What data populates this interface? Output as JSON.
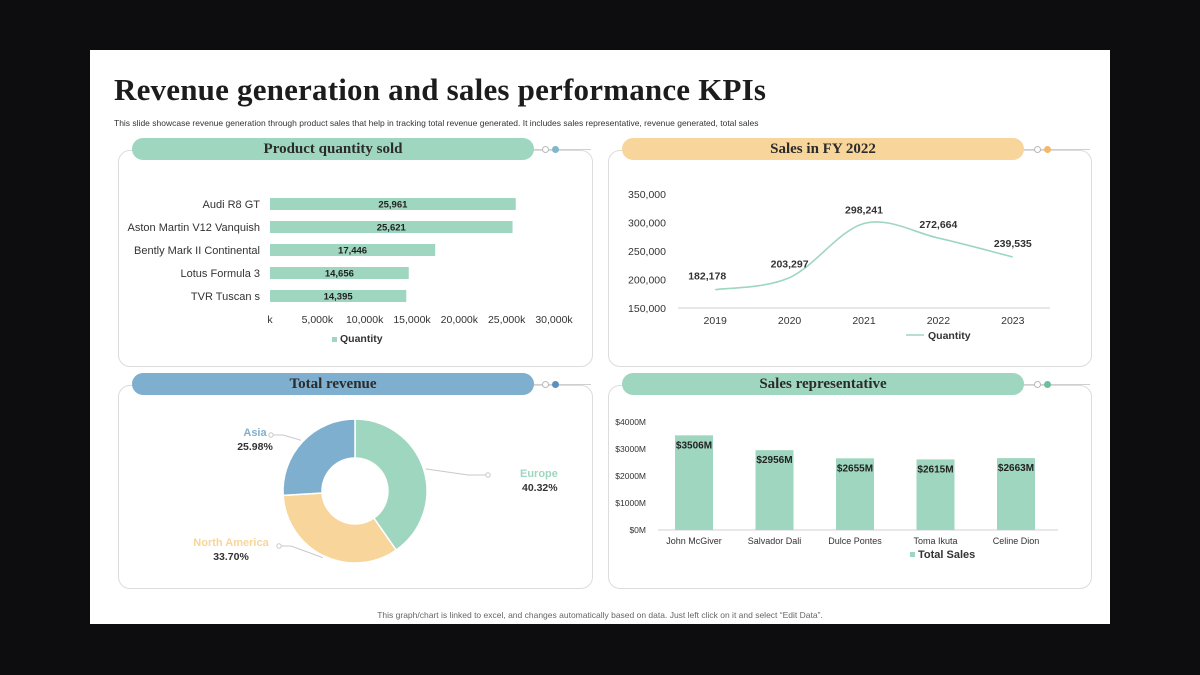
{
  "slide": {
    "title": "Revenue generation and sales performance KPIs",
    "subtitle": "This slide showcase revenue generation through product sales that help in tracking total revenue generated. It includes sales representative, revenue generated, total sales",
    "footer": "This graph/chart is linked to excel,  and changes automatically based on data. Just left click on it and select “Edit Data”."
  },
  "panels": {
    "product_quantity": {
      "header": "Product quantity sold"
    },
    "sales_fy": {
      "header": "Sales in FY 2022"
    },
    "total_revenue": {
      "header": "Total revenue"
    },
    "sales_rep": {
      "header": "Sales representative"
    }
  },
  "colors": {
    "green": "#9fd6bf",
    "yellow": "#f8d59a",
    "blue": "#7fafcf",
    "bar_green": "#9fd6bf",
    "pie_green": "#9fd6bf",
    "pie_yellow": "#f8d59a",
    "pie_blue": "#7fafcf",
    "line": "#9fd6bf"
  },
  "chart_data": [
    {
      "id": "product_quantity",
      "type": "bar",
      "orientation": "horizontal",
      "categories": [
        "Audi R8 GT",
        "Aston Martin V12 Vanquish",
        "Bently Mark II Continental",
        "Lotus Formula 3",
        "TVR Tuscan s"
      ],
      "values": [
        25961,
        25621,
        17446,
        14656,
        14395
      ],
      "value_labels": [
        "25,961",
        "25,621",
        "17,446",
        "14,656",
        "14,395"
      ],
      "xlim": [
        0,
        30000
      ],
      "x_ticks": [
        0,
        5000,
        10000,
        15000,
        20000,
        25000,
        30000
      ],
      "x_tick_labels": [
        "k",
        "5,000k",
        "10,000k",
        "15,000k",
        "20,000k",
        "25,000k",
        "30,000k"
      ],
      "legend": "Quantity",
      "legend_position": "bottom"
    },
    {
      "id": "sales_fy",
      "type": "line",
      "x": [
        "2019",
        "2020",
        "2021",
        "2022",
        "2023"
      ],
      "values": [
        182178,
        203297,
        298241,
        272664,
        239535
      ],
      "value_labels": [
        "182,178",
        "203,297",
        "298,241",
        "272,664",
        "239,535"
      ],
      "ylim": [
        150000,
        350000
      ],
      "y_ticks": [
        150000,
        200000,
        250000,
        300000,
        350000
      ],
      "y_tick_labels": [
        "150,000",
        "200,000",
        "250,000",
        "300,000",
        "350,000"
      ],
      "legend": "Quantity",
      "legend_position": "bottom"
    },
    {
      "id": "total_revenue",
      "type": "pie",
      "donut": true,
      "slices": [
        {
          "label": "Europe",
          "value": 40.32,
          "value_label": "40.32%",
          "color": "#9fd6bf"
        },
        {
          "label": "North America",
          "value": 33.7,
          "value_label": "33.70%",
          "color": "#f8d59a"
        },
        {
          "label": "Asia",
          "value": 25.98,
          "value_label": "25.98%",
          "color": "#7fafcf"
        }
      ]
    },
    {
      "id": "sales_rep",
      "type": "bar",
      "categories": [
        "John McGiver",
        "Salvador Dali",
        "Dulce Pontes",
        "Toma Ikuta",
        "Celine Dion"
      ],
      "values": [
        3506,
        2956,
        2655,
        2615,
        2663
      ],
      "value_labels": [
        "$3506M",
        "$2956M",
        "$2655M",
        "$2615M",
        "$2663M"
      ],
      "ylim": [
        0,
        4000
      ],
      "y_ticks": [
        0,
        1000,
        2000,
        3000,
        4000
      ],
      "y_tick_labels": [
        "$0M",
        "$1000M",
        "$2000M",
        "$3000M",
        "$4000M"
      ],
      "legend": "Total Sales",
      "legend_position": "bottom"
    }
  ]
}
